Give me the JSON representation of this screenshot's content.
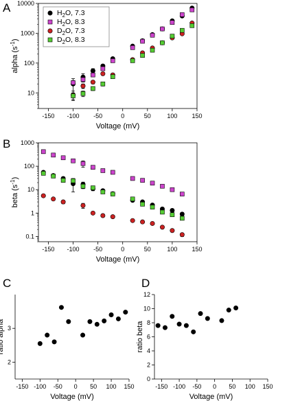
{
  "figure": {
    "panels": [
      "A",
      "B",
      "C",
      "D"
    ]
  },
  "chart_data": [
    {
      "panel": "A",
      "type": "scatter",
      "title": "",
      "xlabel": "Voltage (mV)",
      "ylabel": "alpha (s⁻¹)",
      "xlim": [
        -170,
        150
      ],
      "ylim": [
        3,
        10000
      ],
      "yscale": "log",
      "xticks": [
        -150,
        -100,
        -50,
        0,
        50,
        100,
        150
      ],
      "yticks": [
        10,
        100,
        1000,
        10000
      ],
      "grid": false,
      "legend": "top-left",
      "series": [
        {
          "name": "H2O, 7.3",
          "color": "#000000",
          "x": [
            -100,
            -80,
            -60,
            -40,
            -20,
            20,
            40,
            60,
            80,
            100,
            120,
            140
          ],
          "y": [
            20,
            34,
            55,
            80,
            140,
            370,
            560,
            900,
            1400,
            2600,
            3800,
            7000
          ],
          "err": [
            10,
            10,
            10,
            10,
            15,
            20,
            30,
            50,
            80,
            150,
            200,
            600
          ]
        },
        {
          "name": "H2O, 8.3",
          "color": "#cc44cc",
          "x": [
            -100,
            -80,
            -60,
            -40,
            -20,
            20,
            40,
            60,
            80,
            100,
            120,
            140
          ],
          "y": [
            22,
            28,
            40,
            65,
            120,
            330,
            540,
            860,
            1400,
            2300,
            4200,
            6100
          ],
          "err": [
            4,
            5,
            5,
            8,
            12,
            20,
            30,
            50,
            80,
            120,
            250,
            600
          ]
        },
        {
          "name": "D2O, 7.3",
          "color": "#cc2222",
          "x": [
            -100,
            -80,
            -60,
            -40,
            -20,
            20,
            40,
            60,
            80,
            100,
            120,
            140
          ],
          "y": [
            8.5,
            17,
            23,
            44,
            40,
            130,
            220,
            320,
            480,
            700,
            960,
            2200
          ],
          "err": [
            3,
            3,
            3,
            4,
            5,
            8,
            12,
            15,
            20,
            30,
            50,
            200
          ]
        },
        {
          "name": "D2O, 8.3",
          "color": "#55cc33",
          "x": [
            -100,
            -80,
            -60,
            -40,
            -20,
            20,
            40,
            60,
            80,
            100,
            120,
            140
          ],
          "y": [
            8,
            9.5,
            14,
            20,
            35,
            120,
            180,
            270,
            480,
            800,
            1250,
            1800
          ],
          "err": [
            2,
            2,
            2,
            3,
            4,
            8,
            10,
            15,
            20,
            40,
            60,
            150
          ]
        }
      ]
    },
    {
      "panel": "B",
      "type": "scatter",
      "title": "",
      "xlabel": "Voltage (mV)",
      "ylabel": "beta (s⁻¹)",
      "xlim": [
        -170,
        150
      ],
      "ylim": [
        0.06,
        1000
      ],
      "yscale": "log",
      "xticks": [
        -150,
        -100,
        -50,
        0,
        50,
        100,
        150
      ],
      "yticks": [
        0.1,
        1,
        10,
        100,
        1000
      ],
      "grid": false,
      "legend": "",
      "series": [
        {
          "name": "H2O, 7.3",
          "color": "#000000",
          "x": [
            -160,
            -140,
            -120,
            -100,
            -80,
            -60,
            -40,
            -20,
            20,
            40,
            60,
            80,
            100,
            120
          ],
          "y": [
            55,
            40,
            30,
            18,
            17,
            11,
            9,
            6.7,
            3.5,
            3.0,
            2.2,
            1.5,
            1.3,
            0.9
          ],
          "err": [
            8,
            6,
            5,
            10,
            4,
            2,
            1.5,
            1,
            0.4,
            0.3,
            0.2,
            0.2,
            0.2,
            0.15
          ]
        },
        {
          "name": "H2O, 8.3",
          "color": "#cc44cc",
          "x": [
            -160,
            -140,
            -120,
            -100,
            -80,
            -60,
            -40,
            -20,
            20,
            40,
            60,
            80,
            100,
            120
          ],
          "y": [
            420,
            300,
            230,
            170,
            130,
            90,
            65,
            55,
            30,
            25,
            19,
            14,
            10,
            6.5
          ],
          "err": [
            40,
            30,
            25,
            20,
            40,
            15,
            8,
            6,
            3,
            3,
            2,
            1.5,
            1,
            0.8
          ]
        },
        {
          "name": "D2O, 7.3",
          "color": "#cc2222",
          "x": [
            -160,
            -140,
            -120,
            -100,
            -80,
            -60,
            -40,
            -20,
            20,
            40,
            60,
            80,
            100,
            120
          ],
          "y": [
            5.5,
            4.0,
            3.0,
            null,
            2.1,
            1.0,
            0.78,
            0.7,
            0.48,
            0.42,
            0.36,
            0.25,
            0.18,
            0.12
          ],
          "err": [
            0.5,
            0.4,
            0.5,
            null,
            0.5,
            0.1,
            0.08,
            0.07,
            0.05,
            0.04,
            0.04,
            0.03,
            0.02,
            0.02
          ]
        },
        {
          "name": "D2O, 8.3",
          "color": "#55cc33",
          "x": [
            -160,
            -140,
            -120,
            -100,
            -80,
            -60,
            -40,
            -20,
            20,
            40,
            60,
            80,
            100,
            120
          ],
          "y": [
            50,
            38,
            25,
            24,
            14,
            12,
            8,
            6.5,
            4.0,
            2.4,
            1.8,
            1.1,
            0.85,
            0.6
          ],
          "err": [
            8,
            5,
            4,
            6,
            3,
            2,
            1.2,
            1,
            0.4,
            0.3,
            0.2,
            0.15,
            0.1,
            0.08
          ]
        }
      ]
    },
    {
      "panel": "C",
      "type": "scatter",
      "title": "",
      "xlabel": "Voltage (mV)",
      "ylabel": "ratio alpha",
      "xlim": [
        -170,
        150
      ],
      "ylim": [
        1.5,
        4
      ],
      "yscale": "linear",
      "xticks": [
        -150,
        -100,
        -50,
        0,
        50,
        100,
        150
      ],
      "yticks": [
        2,
        3
      ],
      "grid": false,
      "legend": "",
      "series": [
        {
          "name": "",
          "color": "#000000",
          "x": [
            -100,
            -80,
            -60,
            -40,
            -20,
            20,
            40,
            60,
            80,
            100,
            120,
            140
          ],
          "y": [
            2.55,
            2.8,
            2.6,
            3.62,
            3.2,
            2.8,
            3.2,
            3.12,
            3.22,
            3.4,
            3.28,
            3.48
          ]
        }
      ]
    },
    {
      "panel": "D",
      "type": "scatter",
      "title": "",
      "xlabel": "Voltage (mV)",
      "ylabel": "ratio beta",
      "xlim": [
        -170,
        150
      ],
      "ylim": [
        0,
        12
      ],
      "yscale": "linear",
      "xticks": [
        -150,
        -100,
        -50,
        0,
        50,
        100,
        150
      ],
      "yticks": [
        0,
        2,
        4,
        6,
        8,
        10,
        12
      ],
      "grid": false,
      "legend": "",
      "series": [
        {
          "name": "",
          "color": "#000000",
          "x": [
            -160,
            -140,
            -120,
            -100,
            -80,
            -60,
            -40,
            -20,
            20,
            40,
            60
          ],
          "y": [
            7.6,
            7.3,
            8.9,
            7.8,
            7.6,
            6.7,
            9.3,
            8.6,
            8.3,
            9.8,
            10.1
          ]
        }
      ]
    }
  ]
}
